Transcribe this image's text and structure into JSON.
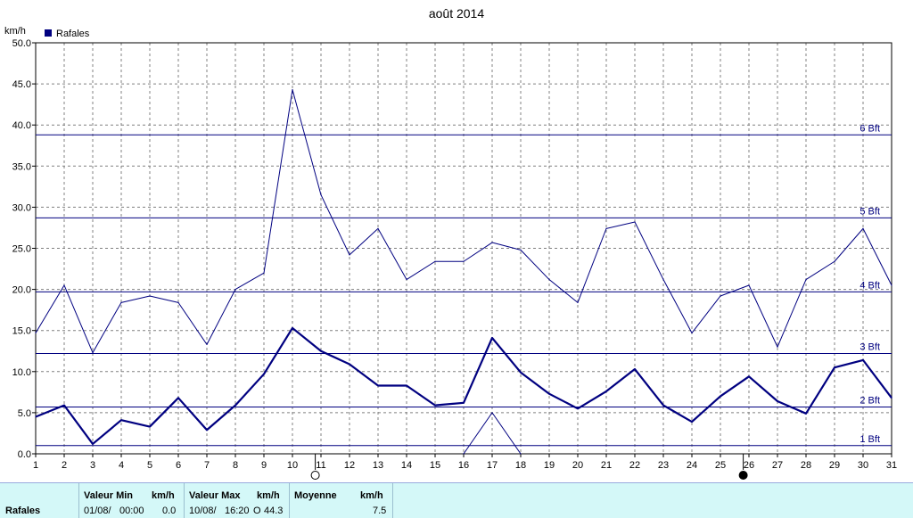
{
  "chart_data": {
    "type": "line",
    "title": "août 2014",
    "ylabel": "km/h",
    "legend": {
      "label": "Rafales",
      "color": "#000080",
      "placement": "top-left"
    },
    "ylim": [
      0,
      50
    ],
    "yticks": [
      "0.0",
      "5.0",
      "10.0",
      "15.0",
      "20.0",
      "25.0",
      "30.0",
      "35.0",
      "40.0",
      "45.0",
      "50.0"
    ],
    "x": [
      1,
      2,
      3,
      4,
      5,
      6,
      7,
      8,
      9,
      10,
      11,
      12,
      13,
      14,
      15,
      16,
      17,
      18,
      19,
      20,
      21,
      22,
      23,
      24,
      25,
      26,
      27,
      28,
      29,
      30,
      31
    ],
    "series": [
      {
        "name": "Rafales",
        "kind": "mean-thick",
        "values": [
          4.5,
          5.9,
          1.2,
          4.1,
          3.3,
          6.8,
          2.9,
          5.9,
          9.7,
          15.3,
          12.5,
          10.9,
          8.3,
          8.3,
          5.9,
          6.2,
          14.1,
          9.9,
          7.3,
          5.5,
          7.6,
          10.3,
          5.9,
          3.9,
          7.0,
          9.4,
          6.4,
          4.9,
          10.5,
          11.4,
          6.8
        ]
      },
      {
        "kind": "max-thin",
        "values": [
          14.7,
          20.5,
          12.3,
          18.4,
          19.2,
          18.4,
          13.3,
          20.0,
          22.0,
          44.3,
          31.5,
          24.2,
          27.4,
          21.2,
          23.4,
          23.4,
          25.7,
          24.8,
          21.2,
          18.4,
          27.4,
          28.2,
          21.2,
          14.7,
          19.2,
          20.5,
          13.0,
          21.2,
          23.4,
          27.4,
          20.5
        ]
      },
      {
        "kind": "min-thin",
        "x": [
          16,
          17,
          18
        ],
        "values": [
          0.0,
          5.0,
          0.0
        ]
      }
    ],
    "beaufort": [
      {
        "label": "1 Bft",
        "value": 1.0
      },
      {
        "label": "2 Bft",
        "value": 5.7
      },
      {
        "label": "3 Bft",
        "value": 12.2
      },
      {
        "label": "4 Bft",
        "value": 19.7
      },
      {
        "label": "5 Bft",
        "value": 28.7
      },
      {
        "label": "6 Bft",
        "value": 38.8
      }
    ],
    "moon_phases": [
      {
        "day": 10.8,
        "phase": "full"
      },
      {
        "day": 25.8,
        "phase": "new"
      }
    ],
    "grid": true,
    "colors": {
      "line": "#000080",
      "grid": "#808080",
      "axis": "#000000"
    }
  },
  "footer": {
    "row_label": "Rafales",
    "min": {
      "header": "Valeur Min",
      "unit": "km/h",
      "date": "01/08/",
      "time": "00:00",
      "value": "0.0"
    },
    "max": {
      "header": "Valeur Max",
      "unit": "km/h",
      "date": "10/08/",
      "time": "16:20",
      "moon": "O",
      "value": "44.3"
    },
    "avg": {
      "header": "Moyenne",
      "unit": "km/h",
      "value": "7.5"
    }
  }
}
